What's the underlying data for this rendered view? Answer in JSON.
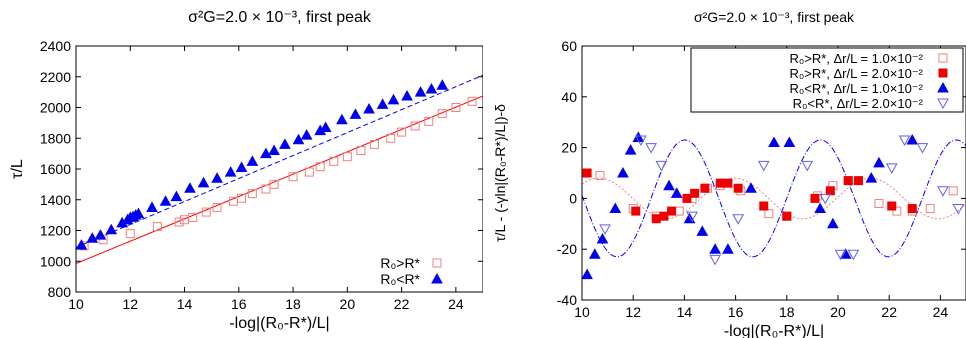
{
  "chart_data": [
    {
      "type": "scatter",
      "title": "σ²G=2.0 × 10⁻³, first peak",
      "xlabel": "-log|(R₀-R*)/L|",
      "ylabel": "τ/L",
      "xlim": [
        10,
        25
      ],
      "ylim": [
        800,
        2400
      ],
      "xticks": [
        10,
        12,
        14,
        16,
        18,
        20,
        22,
        24
      ],
      "yticks": [
        800,
        1000,
        1200,
        1400,
        1600,
        1800,
        2000,
        2200,
        2400
      ],
      "legend_position": "bottom-right",
      "series": [
        {
          "name": "R₀>R*",
          "marker": "open-square",
          "color": "#f08080",
          "x": [
            10.3,
            11.0,
            12.0,
            13.0,
            13.8,
            14.0,
            14.3,
            14.8,
            15.2,
            15.8,
            16.1,
            16.5,
            17.0,
            17.3,
            18.0,
            18.6,
            19.0,
            19.5,
            20.0,
            20.5,
            21.0,
            21.6,
            22.0,
            22.5,
            23.0,
            23.5,
            24.0,
            24.6
          ],
          "y": [
            1100,
            1140,
            1180,
            1225,
            1255,
            1270,
            1285,
            1320,
            1350,
            1390,
            1410,
            1440,
            1470,
            1500,
            1550,
            1580,
            1615,
            1650,
            1680,
            1720,
            1760,
            1800,
            1840,
            1880,
            1910,
            1960,
            2000,
            2040
          ]
        },
        {
          "name": "R₀<R*",
          "marker": "filled-triangle",
          "color": "#0000ee",
          "x": [
            10.2,
            10.6,
            10.9,
            11.3,
            11.7,
            11.9,
            12.0,
            12.1,
            12.2,
            12.3,
            12.8,
            13.3,
            13.7,
            14.2,
            14.7,
            15.2,
            15.7,
            16.1,
            16.5,
            17.0,
            17.3,
            17.7,
            18.2,
            18.5,
            19.0,
            19.2,
            19.8,
            20.3,
            20.8,
            21.3,
            21.7,
            22.2,
            22.7,
            23.1,
            23.5
          ],
          "y": [
            1105,
            1150,
            1170,
            1205,
            1250,
            1270,
            1285,
            1290,
            1300,
            1310,
            1350,
            1390,
            1420,
            1475,
            1510,
            1540,
            1580,
            1610,
            1650,
            1700,
            1720,
            1760,
            1790,
            1820,
            1850,
            1870,
            1920,
            1955,
            1990,
            2020,
            2050,
            2075,
            2100,
            2120,
            2145
          ]
        }
      ],
      "fits": [
        {
          "color": "#ff0000",
          "style": "solid",
          "x": [
            10,
            25
          ],
          "y": [
            985,
            2075
          ]
        },
        {
          "color": "#0000ff",
          "style": "dashed",
          "x": [
            10,
            25
          ],
          "y": [
            1090,
            2210
          ]
        }
      ]
    },
    {
      "type": "scatter",
      "title": "σ²G=2.0 × 10⁻³, first peak",
      "xlabel": "-log|(R₀-R*)/L|",
      "ylabel": "τ/L - (-γln|(R₀-R*)/L|)-δ",
      "xlim": [
        10,
        25
      ],
      "ylim": [
        -40,
        60
      ],
      "xticks": [
        10,
        12,
        14,
        16,
        18,
        20,
        22,
        24
      ],
      "yticks": [
        -40,
        -20,
        0,
        20,
        40,
        60
      ],
      "legend_position": "top-right",
      "series": [
        {
          "name": "R₀>R*, Δr/L = 1.0×10⁻²",
          "marker": "open-square",
          "color": "#f08080",
          "x": [
            10.7,
            12.0,
            12.9,
            13.8,
            14.3,
            14.9,
            15.4,
            16.2,
            17.3,
            18.0,
            19.2,
            19.8,
            20.4,
            21.6,
            22.3,
            22.9,
            23.6,
            24.5
          ],
          "y": [
            9,
            -4,
            -7,
            -5,
            0,
            4,
            5,
            3,
            -6,
            -7,
            1,
            5,
            7,
            -2,
            -5,
            -5,
            -4,
            3
          ]
        },
        {
          "name": "R₀>R*, Δr/L = 2.0×10⁻²",
          "marker": "filled-square",
          "color": "#ee0000",
          "x": [
            10.2,
            12.1,
            12.9,
            13.2,
            13.5,
            14.1,
            14.4,
            14.8,
            15.4,
            15.7,
            16.1,
            17.1,
            18.0,
            19.1,
            19.7,
            20.4,
            20.8,
            22.1,
            22.9
          ],
          "y": [
            10,
            -5,
            -8,
            -7,
            -5,
            0,
            2,
            4,
            6,
            6,
            4,
            -3,
            -7,
            0,
            3,
            7,
            7,
            -3,
            -4
          ]
        },
        {
          "name": "R₀<R*, Δr/L = 1.0×10⁻²",
          "marker": "filled-triangle",
          "color": "#0000ee",
          "x": [
            10.2,
            10.5,
            10.8,
            11.3,
            11.6,
            11.9,
            12.2,
            13.4,
            13.7,
            14.2,
            14.7,
            15.2,
            15.7,
            16.6,
            17.5,
            18.1,
            19.3,
            19.8,
            20.3,
            21.3,
            21.6,
            22.9
          ],
          "y": [
            -30,
            -22,
            -16,
            -4,
            10,
            19,
            24,
            5,
            2,
            -8,
            -13,
            -20,
            -20,
            4,
            22,
            22,
            -4,
            -10,
            -22,
            8,
            14,
            23
          ]
        },
        {
          "name": "R₀<R*, Δr/L= 2.0×10⁻²",
          "marker": "open-triangle-down",
          "color": "#6060ee",
          "x": [
            10.9,
            12.3,
            12.7,
            13.1,
            14.3,
            15.2,
            16.1,
            17.1,
            18.8,
            19.5,
            20.1,
            20.6,
            22.1,
            22.6,
            23.3,
            24.1,
            24.7
          ],
          "y": [
            -12,
            23,
            20,
            13,
            -7,
            -24,
            -8,
            13,
            13,
            0,
            -22,
            -22,
            12,
            23,
            20,
            3,
            -4
          ]
        }
      ],
      "fits": [
        {
          "color": "#f08080",
          "style": "dotted",
          "amplitude": 8,
          "period": 5.3,
          "phase": 1.5,
          "offset": 0
        },
        {
          "color": "#0000ff",
          "style": "dashdot",
          "amplitude": 23,
          "period": 5.3,
          "phase": 3.8,
          "offset": 0
        }
      ]
    }
  ]
}
